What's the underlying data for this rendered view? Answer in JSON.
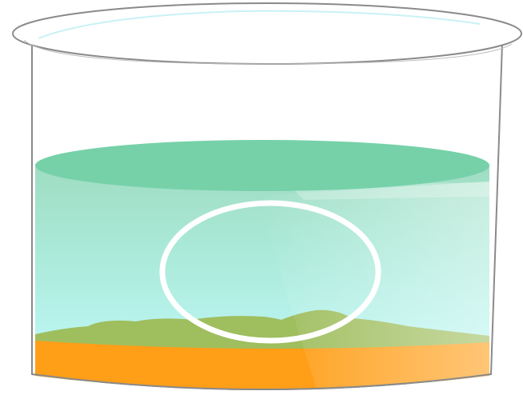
{
  "figure": {
    "subject": "beaker-with-liquid-layers",
    "text_labels": []
  },
  "colors": {
    "background": "#ffffff",
    "glass_outline": "#8a8a8a",
    "glass_rim_fill": "#ffffff",
    "glass_rim_highlight": "#c9f1f6",
    "liquid_surface": "#76d1a9",
    "liquid_top": "#9fdcc2",
    "liquid_bottom": "#c3fbfd",
    "liquid_band_top": "#8fd7c3",
    "sediment_green": "#9fbe5e",
    "sediment_green_light": "#b9cf8c",
    "sediment_orange": "#ff9e17",
    "sediment_orange_light": "#ffc27a",
    "observation_ring": "#ffffff"
  },
  "elements": {
    "beaker": "glass-beaker",
    "liquid": "liquid-column",
    "ring": "observation-circle",
    "green_layer": "green-sediment-layer",
    "orange_layer": "orange-sediment-layer",
    "reflection": "glass-reflection-highlight"
  }
}
